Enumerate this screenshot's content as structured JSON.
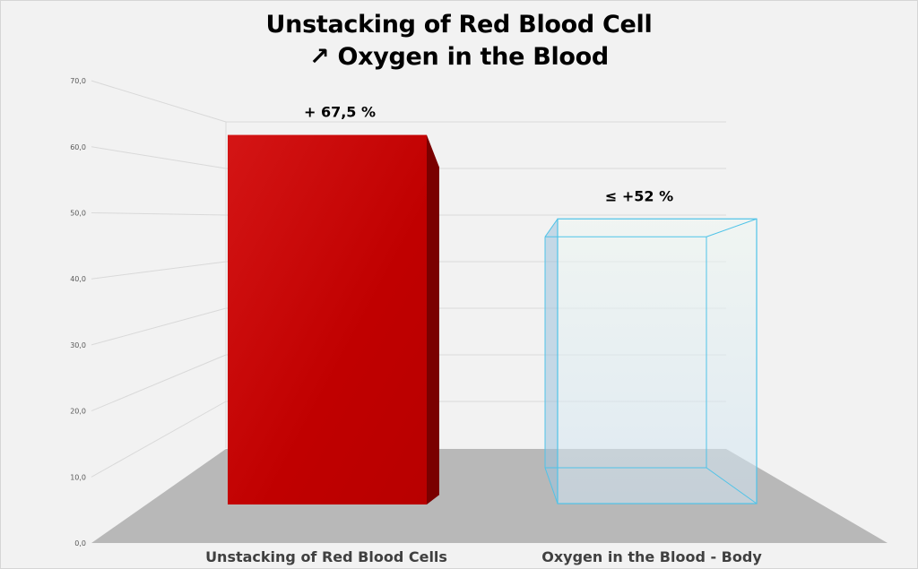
{
  "chart_data": {
    "type": "bar",
    "title": "Unstacking of Red Blood Cell",
    "subtitle": "↗ Oxygen in the Blood",
    "categories": [
      "Unstacking of Red Blood Cells",
      "Oxygen in the Blood - Body"
    ],
    "values": [
      67.5,
      52
    ],
    "data_labels": [
      "+ 67,5 %",
      "≤ +52 %"
    ],
    "y_ticks": [
      "0,0",
      "10,0",
      "20,0",
      "30,0",
      "40,0",
      "50,0",
      "60,0",
      "70,0"
    ],
    "ylim": [
      0,
      70
    ],
    "xlabel": "",
    "ylabel": "",
    "grid": true,
    "colors": {
      "bar1_front": "#c00000",
      "bar1_side": "#7a0000",
      "bar2_fill": "#d6e9f5",
      "bar2_edge": "#4fc3e8",
      "floor": "#b8b8b8",
      "grid": "#d9d9d9"
    }
  }
}
